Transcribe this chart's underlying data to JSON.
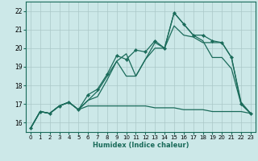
{
  "xlabel": "Humidex (Indice chaleur)",
  "xlim": [
    -0.5,
    23.5
  ],
  "ylim": [
    15.5,
    22.5
  ],
  "xticks": [
    0,
    1,
    2,
    3,
    4,
    5,
    6,
    7,
    8,
    9,
    10,
    11,
    12,
    13,
    14,
    15,
    16,
    17,
    18,
    19,
    20,
    21,
    22,
    23
  ],
  "yticks": [
    16,
    17,
    18,
    19,
    20,
    21,
    22
  ],
  "background_color": "#cce8e8",
  "grid_color": "#aac8c8",
  "line_color": "#1a6b5a",
  "lines": [
    {
      "x": [
        0,
        1,
        2,
        3,
        4,
        5,
        6,
        7,
        8,
        9,
        10,
        11,
        12,
        13,
        14,
        15,
        16,
        17,
        18,
        19,
        20,
        21,
        22,
        23
      ],
      "y": [
        15.7,
        16.6,
        16.5,
        16.9,
        17.1,
        16.7,
        16.9,
        16.9,
        16.9,
        16.9,
        16.9,
        16.9,
        16.9,
        16.8,
        16.8,
        16.8,
        16.7,
        16.7,
        16.7,
        16.6,
        16.6,
        16.6,
        16.6,
        16.5
      ],
      "marker": false
    },
    {
      "x": [
        0,
        1,
        2,
        3,
        4,
        5,
        6,
        7,
        8,
        9,
        10,
        11,
        12,
        13,
        14,
        15,
        16,
        17,
        18,
        19,
        20,
        21,
        22,
        23
      ],
      "y": [
        15.7,
        16.6,
        16.5,
        16.9,
        17.1,
        16.7,
        17.2,
        17.4,
        18.3,
        19.3,
        18.5,
        18.5,
        19.4,
        20.0,
        20.0,
        21.9,
        21.3,
        20.7,
        20.4,
        19.5,
        19.5,
        18.9,
        17.0,
        16.5
      ],
      "marker": false
    },
    {
      "x": [
        0,
        1,
        2,
        3,
        4,
        5,
        6,
        7,
        8,
        9,
        10,
        11,
        12,
        13,
        14,
        15,
        16,
        17,
        18,
        19,
        20,
        21,
        22,
        23
      ],
      "y": [
        15.7,
        16.6,
        16.5,
        16.9,
        17.1,
        16.7,
        17.2,
        17.7,
        18.5,
        19.3,
        19.7,
        18.5,
        19.4,
        20.3,
        20.0,
        21.2,
        20.7,
        20.6,
        20.3,
        20.3,
        20.3,
        19.5,
        17.1,
        16.5
      ],
      "marker": false
    },
    {
      "x": [
        0,
        1,
        2,
        3,
        4,
        5,
        6,
        7,
        8,
        9,
        10,
        11,
        12,
        13,
        14,
        15,
        16,
        17,
        18,
        19,
        20,
        21,
        22,
        23
      ],
      "y": [
        15.7,
        16.6,
        16.5,
        16.9,
        17.1,
        16.7,
        17.5,
        17.8,
        18.6,
        19.6,
        19.4,
        19.9,
        19.8,
        20.4,
        20.0,
        21.9,
        21.3,
        20.7,
        20.7,
        20.4,
        20.3,
        19.5,
        17.0,
        16.5
      ],
      "marker": true
    }
  ]
}
